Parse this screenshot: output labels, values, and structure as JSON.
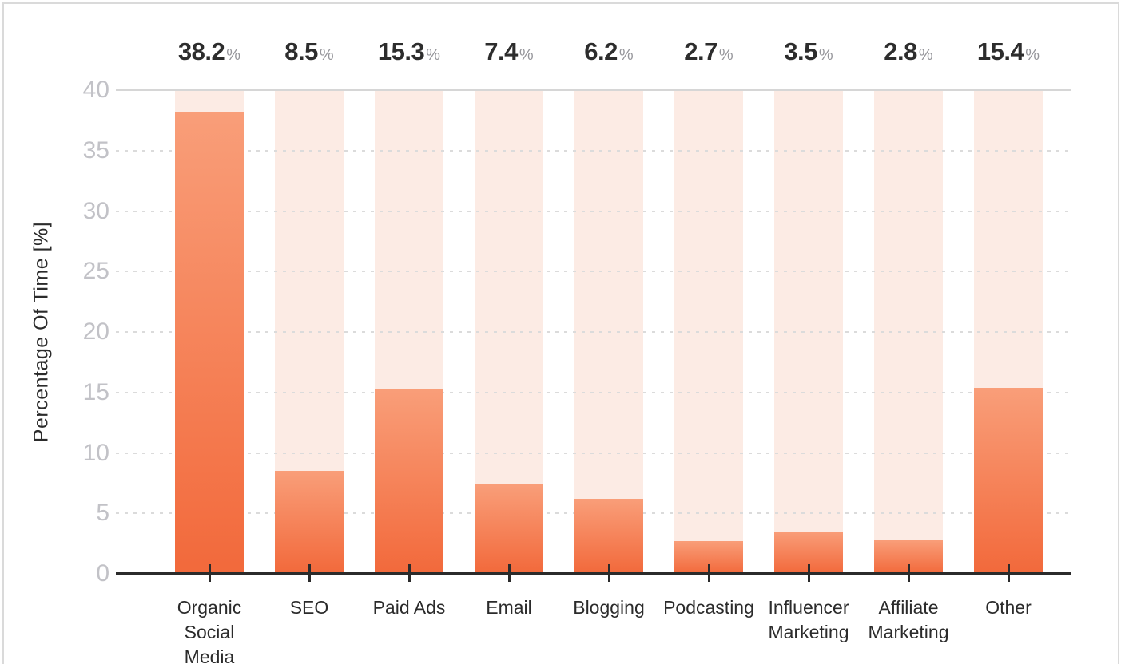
{
  "colors": {
    "bar_gradient_top": "#F99E79",
    "bar_gradient_bottom": "#F2693B",
    "background_column": "#FCEBE4",
    "gridline_dashed": "#DBDBDB",
    "gridline_top_solid": "#D6D6D6",
    "axis_line": "#2B2B2B",
    "y_tick_label": "#C2C2C7",
    "value_number": "#2D2D2D",
    "value_percent_sign": "#96969B",
    "category_label": "#2B2B2B",
    "card_border": "#DADADA",
    "card_background": "#FFFFFF"
  },
  "chart_data": {
    "type": "bar",
    "title": "",
    "ylabel": "Percentage Of Time [%]",
    "xlabel": "",
    "ylim": [
      0,
      40
    ],
    "yticks": [
      0,
      5,
      10,
      15,
      20,
      25,
      30,
      35,
      40
    ],
    "grid": "horizontal dashed lines every 5 units; solid light line at 40; no vertical grid",
    "legend_position": "none",
    "categories": [
      "Organic Social Media",
      "SEO",
      "Paid Ads",
      "Email",
      "Blogging",
      "Podcasting",
      "Influencer Marketing",
      "Affiliate Marketing",
      "Other"
    ],
    "values": [
      38.2,
      8.5,
      15.3,
      7.4,
      6.2,
      2.7,
      3.5,
      2.8,
      15.4
    ],
    "value_labels": [
      "38.2",
      "8.5",
      "15.3",
      "7.4",
      "6.2",
      "2.7",
      "3.5",
      "2.8",
      "15.4"
    ],
    "value_suffix": "%",
    "bar_style": "each bar has vertical gradient (light peach top to deep orange bottom) over a full-height pale peach background column"
  }
}
